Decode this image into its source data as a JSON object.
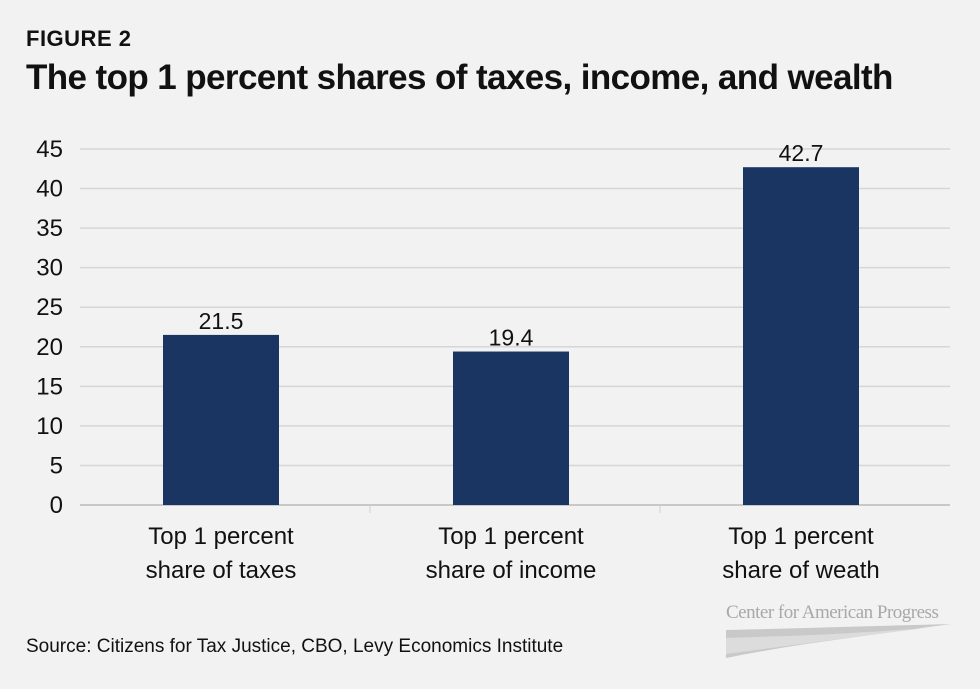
{
  "header": {
    "figure_label": "FIGURE 2",
    "title": "The top 1 percent shares of taxes, income, and wealth"
  },
  "footer": {
    "source": "Source: Citizens for Tax Justice, CBO, Levy Economics Institute",
    "logo_text": "Center for American Progress"
  },
  "colors": {
    "bar": "#1b3562",
    "grid": "#d6d6d6",
    "background": "#f2f2f2"
  },
  "chart_data": {
    "type": "bar",
    "title": "The top 1 percent shares of taxes, income, and wealth",
    "xlabel": "",
    "ylabel": "",
    "ylim": [
      0,
      45
    ],
    "yticks": [
      0,
      5,
      10,
      15,
      20,
      25,
      30,
      35,
      40,
      45
    ],
    "grid": true,
    "legend": "none",
    "categories": [
      [
        "Top 1 percent",
        "share of taxes"
      ],
      [
        "Top 1 percent",
        "share of income"
      ],
      [
        "Top 1 percent",
        "share of weath"
      ]
    ],
    "values": [
      21.5,
      19.4,
      42.7
    ],
    "data_labels": [
      "21.5",
      "19.4",
      "42.7"
    ]
  }
}
